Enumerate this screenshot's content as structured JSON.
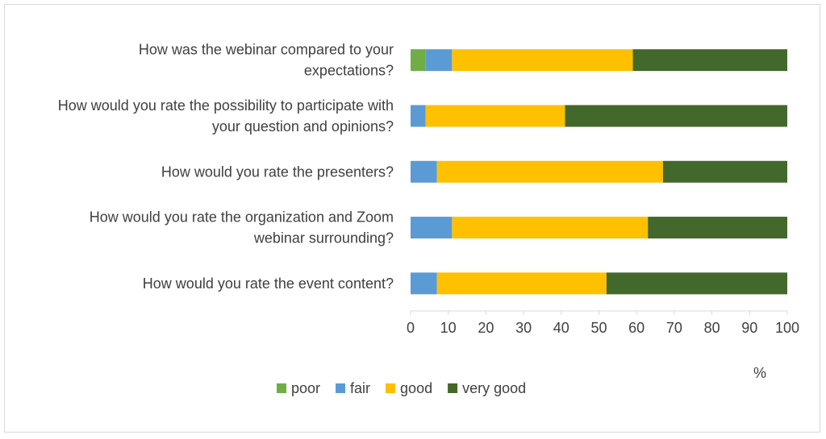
{
  "chart_data": {
    "type": "bar",
    "orientation": "horizontal",
    "stacked": true,
    "categories": [
      [
        "How was the webinar compared to your",
        "expectations?"
      ],
      [
        "How would you rate the possibility to participate with",
        "your question and opinions?"
      ],
      [
        "How would you rate the presenters?"
      ],
      [
        "How would you rate the organization and Zoom",
        "webinar surrounding?"
      ],
      [
        "How would you rate the event content?"
      ]
    ],
    "series": [
      {
        "name": "poor",
        "color": "#70ad47",
        "values": [
          4,
          0,
          0,
          0,
          0
        ]
      },
      {
        "name": "fair",
        "color": "#5b9bd5",
        "values": [
          7,
          4,
          7,
          11,
          7
        ]
      },
      {
        "name": "good",
        "color": "#ffc000",
        "values": [
          48,
          37,
          60,
          52,
          45
        ]
      },
      {
        "name": "very good",
        "color": "#43682b",
        "values": [
          41,
          59,
          33,
          37,
          48
        ]
      }
    ],
    "xlim": [
      0,
      100
    ],
    "xticks": [
      0,
      10,
      20,
      30,
      40,
      50,
      60,
      70,
      80,
      90,
      100
    ],
    "xlabel": "%",
    "grid": false,
    "legend_position": "bottom"
  }
}
